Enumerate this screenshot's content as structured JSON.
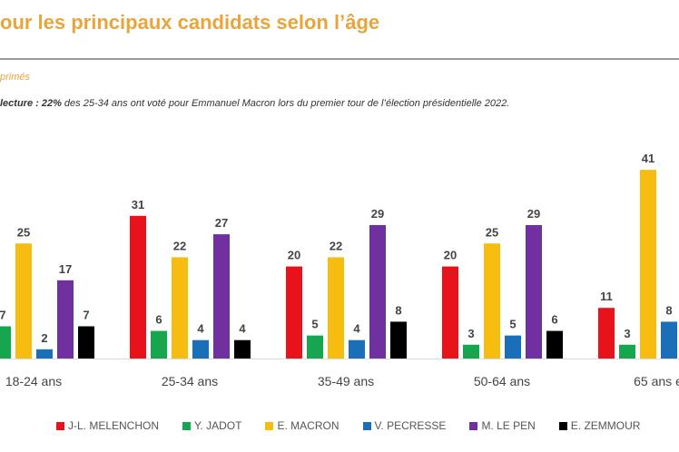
{
  "header": {
    "title": "our les principaux candidats selon l’âge",
    "subtitle": "primés",
    "note_bold": "lecture : 22%",
    "note_rest": " des 25-34 ans ont voté pour Emmanuel Macron lors du premier tour de l’élection présidentielle 2022."
  },
  "chart_data": {
    "type": "bar",
    "categories": [
      "18-24 ans",
      "25-34 ans",
      "35-49 ans",
      "50-64 ans",
      "65 ans e"
    ],
    "series": [
      {
        "name": "J-L. MELENCHON",
        "color": "#e8121a",
        "values": [
          null,
          31,
          20,
          20,
          11
        ]
      },
      {
        "name": "Y. JADOT",
        "color": "#17a54f",
        "values": [
          7,
          6,
          5,
          3,
          3
        ]
      },
      {
        "name": "E. MACRON",
        "color": "#f6bd10",
        "values": [
          25,
          22,
          22,
          25,
          41
        ]
      },
      {
        "name": "V. PECRESSE",
        "color": "#1b6fb8",
        "values": [
          2,
          4,
          4,
          5,
          8
        ]
      },
      {
        "name": "M. LE PEN",
        "color": "#7030a0",
        "values": [
          17,
          27,
          29,
          29,
          null
        ]
      },
      {
        "name": "E. ZEMMOUR",
        "color": "#000000",
        "values": [
          7,
          4,
          8,
          6,
          null
        ]
      }
    ],
    "legend_position": "bottom",
    "grid": false,
    "data_labels": true
  }
}
